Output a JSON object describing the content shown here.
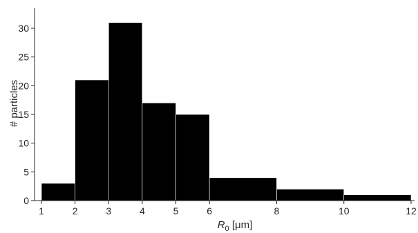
{
  "chart_data": {
    "type": "bar",
    "bins": [
      {
        "x0": 1,
        "x1": 2,
        "count": 3
      },
      {
        "x0": 2,
        "x1": 3,
        "count": 21
      },
      {
        "x0": 3,
        "x1": 4,
        "count": 31
      },
      {
        "x0": 4,
        "x1": 5,
        "count": 17
      },
      {
        "x0": 5,
        "x1": 6,
        "count": 15
      },
      {
        "x0": 6,
        "x1": 8,
        "count": 4
      },
      {
        "x0": 8,
        "x1": 10,
        "count": 2
      },
      {
        "x0": 10,
        "x1": 12,
        "count": 1
      }
    ],
    "xlabel": {
      "main": "R",
      "sub": "0",
      "unit": " [μm]"
    },
    "ylabel": "# particles",
    "xlim": [
      1,
      12
    ],
    "ylim": [
      0,
      33
    ],
    "xticks": [
      1,
      2,
      3,
      4,
      5,
      6,
      8,
      10,
      12
    ],
    "yticks": [
      0,
      5,
      10,
      15,
      20,
      25,
      30
    ],
    "bar_color": "#000000",
    "grid": false,
    "legend": "none"
  }
}
